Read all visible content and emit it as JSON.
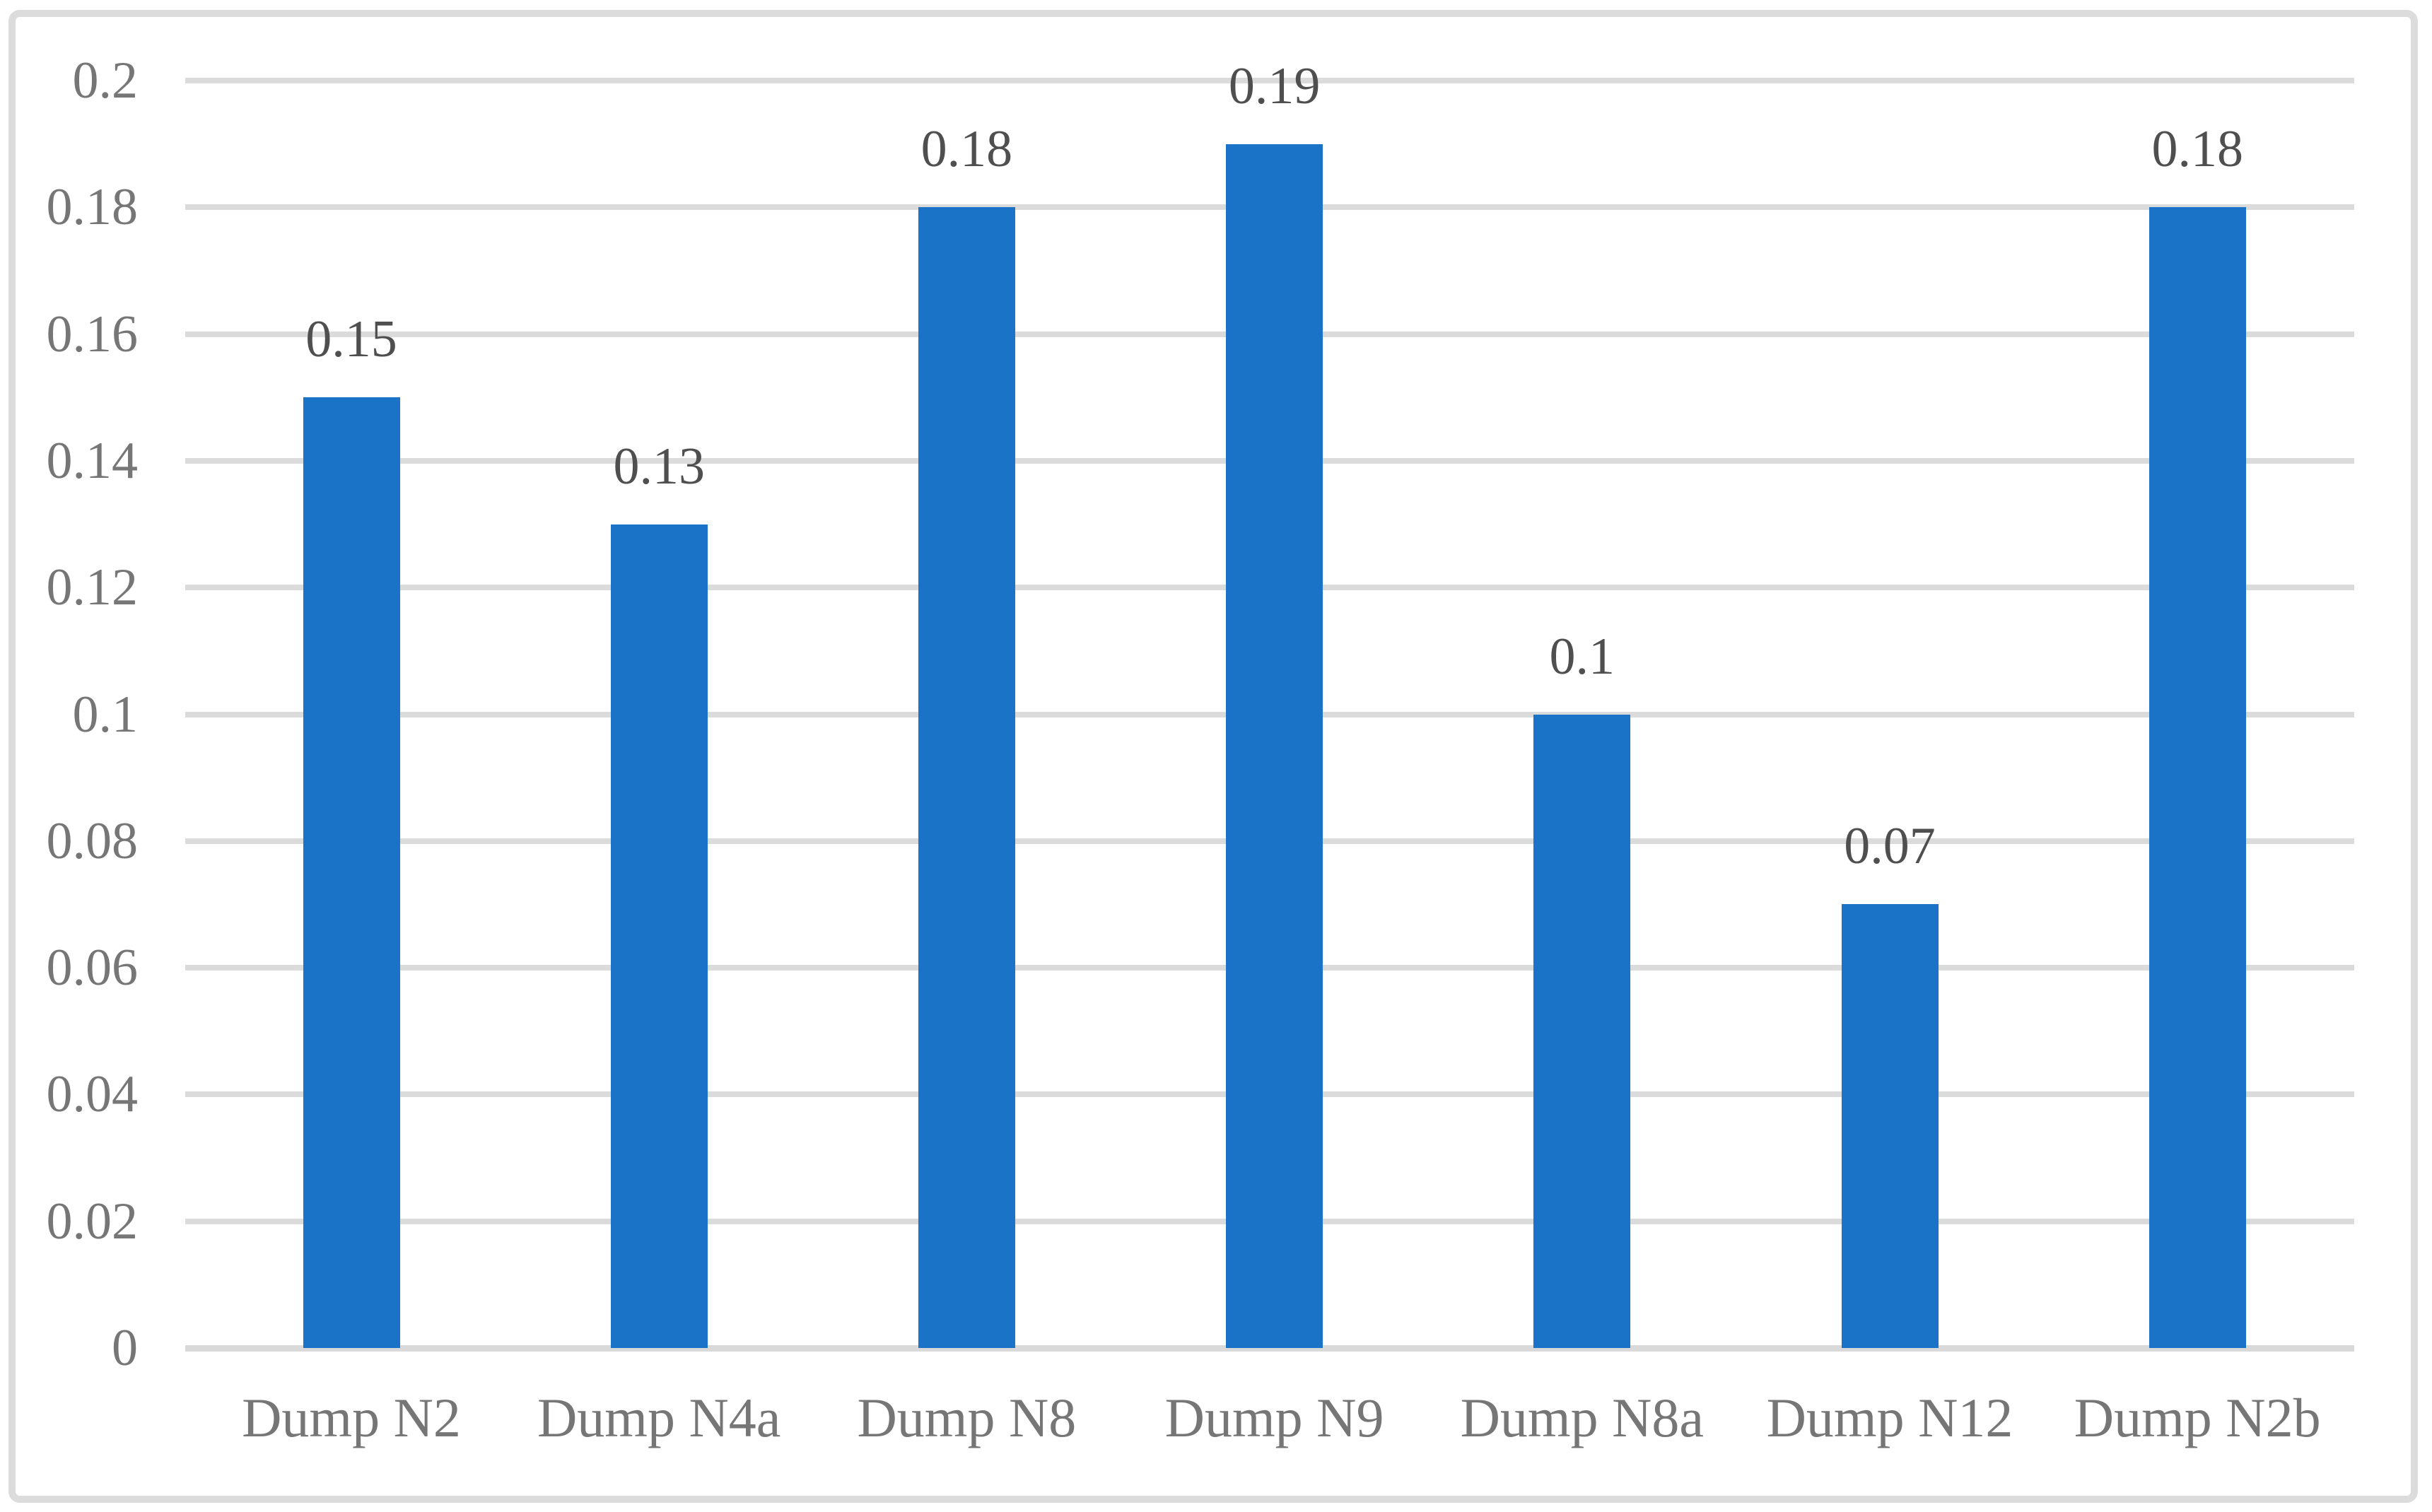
{
  "chart_data": {
    "type": "bar",
    "title": "",
    "xlabel": "",
    "ylabel": "",
    "categories": [
      "Dump N2",
      "Dump N4a",
      "Dump N8",
      "Dump N9",
      "Dump N8a",
      "Dump N12",
      "Dump N2b"
    ],
    "values": [
      0.15,
      0.13,
      0.18,
      0.19,
      0.1,
      0.07,
      0.18
    ],
    "data_labels": [
      "0.15",
      "0.13",
      "0.18",
      "0.19",
      "0.1",
      "0.07",
      "0.18"
    ],
    "ylim": [
      0,
      0.2
    ],
    "ytick_values": [
      0,
      0.02,
      0.04,
      0.06,
      0.08,
      0.1,
      0.12,
      0.14,
      0.16,
      0.18,
      0.2
    ],
    "ytick_labels": [
      "0",
      "0.02",
      "0.04",
      "0.06",
      "0.08",
      "0.1",
      "0.12",
      "0.14",
      "0.16",
      "0.18",
      "0.2"
    ],
    "grid": true,
    "legend": false,
    "colors": {
      "bar": "#1b73c8",
      "gridline": "#dbdbdb",
      "axis_line": "#d9d9d9",
      "tick_label": "#767676",
      "data_label": "#4f4f4f",
      "frame_border": "#dcdcdc",
      "background": "#ffffff"
    }
  }
}
